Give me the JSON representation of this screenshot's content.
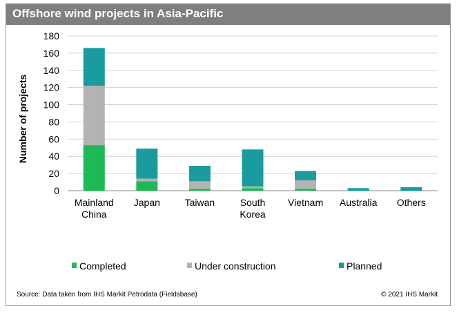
{
  "chart_data": {
    "type": "bar",
    "stacked": true,
    "title": "Offshore wind projects in Asia-Pacific",
    "xlabel": "",
    "ylabel": "Number of projects",
    "ylim": [
      0,
      180
    ],
    "yticks": [
      0,
      20,
      40,
      60,
      80,
      100,
      120,
      140,
      160,
      180
    ],
    "grid": true,
    "legend_position": "bottom",
    "categories": [
      "Mainland China",
      "Japan",
      "Taiwan",
      "South Korea",
      "Vietnam",
      "Australia",
      "Others"
    ],
    "category_lines": [
      [
        "Mainland",
        "China"
      ],
      [
        "Japan"
      ],
      [
        "Taiwan"
      ],
      [
        "South",
        "Korea"
      ],
      [
        "Vietnam"
      ],
      [
        "Australia"
      ],
      [
        "Others"
      ]
    ],
    "series": [
      {
        "name": "Completed",
        "color": "#1db954",
        "values": [
          53,
          11,
          2,
          3,
          2,
          0,
          0
        ]
      },
      {
        "name": "Under construction",
        "color": "#b3b3b3",
        "values": [
          69,
          3,
          9,
          2,
          10,
          0,
          0
        ]
      },
      {
        "name": "Planned",
        "color": "#1a9b9e",
        "values": [
          44,
          35,
          18,
          43,
          11,
          3,
          4
        ]
      }
    ],
    "source": "Source: Data taken from IHS Markit Petrodata (Fieldsbase)",
    "copyright": "© 2021 IHS Markit"
  }
}
